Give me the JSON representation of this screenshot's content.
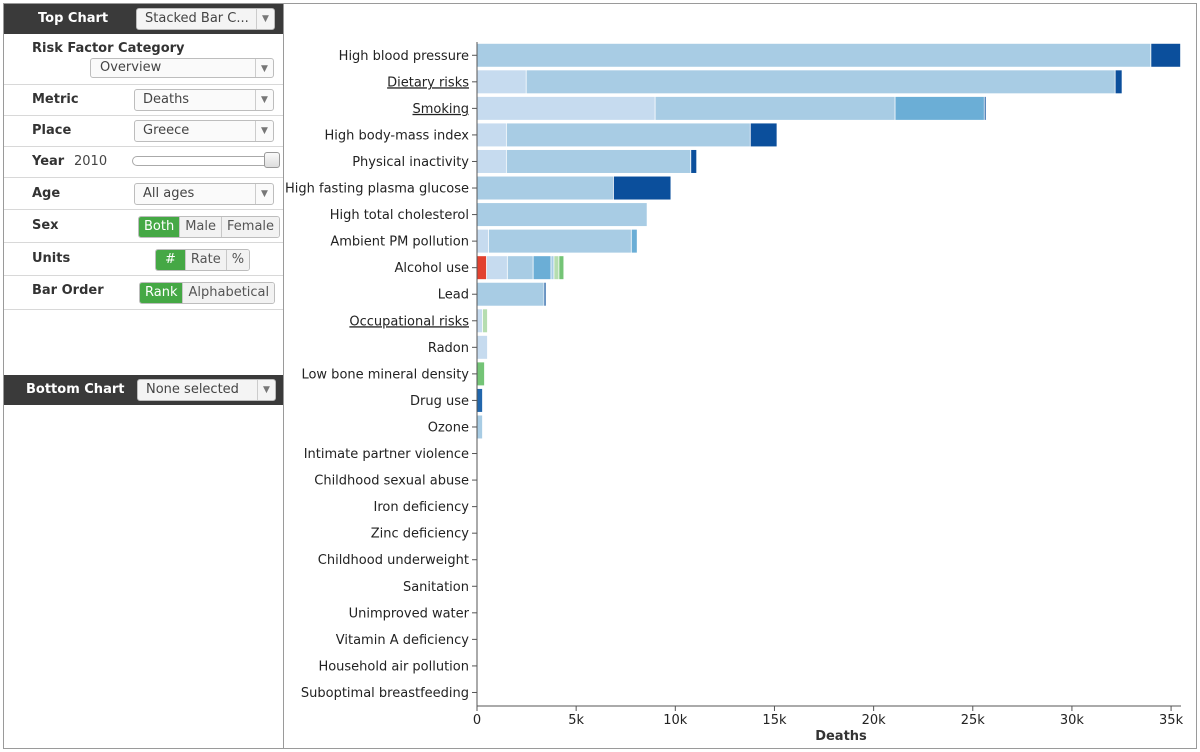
{
  "top_chart": {
    "label": "Top Chart",
    "selected": "Stacked Bar C..."
  },
  "controls": {
    "risk_factor_category": {
      "label": "Risk Factor Category",
      "value": "Overview"
    },
    "metric": {
      "label": "Metric",
      "value": "Deaths"
    },
    "place": {
      "label": "Place",
      "value": "Greece"
    },
    "year": {
      "label": "Year",
      "value": "2010",
      "slider_position": 1.0
    },
    "age": {
      "label": "Age",
      "value": "All ages"
    },
    "sex": {
      "label": "Sex",
      "options": [
        "Both",
        "Male",
        "Female"
      ],
      "selected": "Both"
    },
    "units": {
      "label": "Units",
      "options": [
        "#",
        "Rate",
        "%"
      ],
      "selected": "#"
    },
    "bar_order": {
      "label": "Bar Order",
      "options": [
        "Rank",
        "Alphabetical"
      ],
      "selected": "Rank"
    }
  },
  "bottom_chart": {
    "label": "Bottom Chart",
    "selected": "None selected"
  },
  "colors": {
    "green_active": "#45a845",
    "header_bg": "#3a3a3a",
    "bar_base": "#a8cce4",
    "bar_light": "#c6dbef",
    "bar_dark": "#0b4f9c",
    "bar_mid": "#6baed6",
    "bar_red": "#e2412f",
    "bar_green": "#74c476"
  },
  "chart_data": {
    "type": "bar",
    "orientation": "horizontal",
    "stacked": true,
    "xlabel": "Deaths",
    "xlim": [
      0,
      35500
    ],
    "x_ticks": [
      0,
      5000,
      10000,
      15000,
      20000,
      25000,
      30000,
      35000
    ],
    "x_tick_labels": [
      "0",
      "5k",
      "10k",
      "15k",
      "20k",
      "25k",
      "30k",
      "35k"
    ],
    "categories": [
      {
        "name": "High blood pressure",
        "underlined": false,
        "segments": [
          {
            "value": 34000,
            "color": "base"
          },
          {
            "value": 1500,
            "color": "dark"
          }
        ]
      },
      {
        "name": "Dietary risks",
        "underlined": true,
        "segments": [
          {
            "value": 2500,
            "color": "light"
          },
          {
            "value": 29700,
            "color": "base"
          },
          {
            "value": 350,
            "color": "dark"
          }
        ]
      },
      {
        "name": "Smoking",
        "underlined": true,
        "segments": [
          {
            "value": 9000,
            "color": "light"
          },
          {
            "value": 12100,
            "color": "base"
          },
          {
            "value": 4500,
            "color": "mid"
          },
          {
            "value": 80,
            "color": "dark"
          }
        ]
      },
      {
        "name": "High body-mass index",
        "underlined": false,
        "segments": [
          {
            "value": 1500,
            "color": "light"
          },
          {
            "value": 12300,
            "color": "base"
          },
          {
            "value": 1350,
            "color": "dark"
          }
        ]
      },
      {
        "name": "Physical inactivity",
        "underlined": false,
        "segments": [
          {
            "value": 1500,
            "color": "light"
          },
          {
            "value": 9300,
            "color": "base"
          },
          {
            "value": 300,
            "color": "dark"
          }
        ]
      },
      {
        "name": "High fasting plasma glucose",
        "underlined": false,
        "segments": [
          {
            "value": 6900,
            "color": "base"
          },
          {
            "value": 2900,
            "color": "dark"
          }
        ]
      },
      {
        "name": "High total cholesterol",
        "underlined": false,
        "segments": [
          {
            "value": 8600,
            "color": "base"
          }
        ]
      },
      {
        "name": "Ambient PM pollution",
        "underlined": false,
        "segments": [
          {
            "value": 600,
            "color": "light"
          },
          {
            "value": 7200,
            "color": "base"
          },
          {
            "value": 300,
            "color": "mid"
          }
        ]
      },
      {
        "name": "Alcohol use",
        "underlined": false,
        "segments": [
          {
            "value": 500,
            "color": "red"
          },
          {
            "value": 1050,
            "color": "light"
          },
          {
            "value": 1300,
            "color": "base"
          },
          {
            "value": 900,
            "color": "mid"
          },
          {
            "value": 150,
            "color": "base"
          },
          {
            "value": 250,
            "color": "green_light"
          },
          {
            "value": 250,
            "color": "green"
          }
        ]
      },
      {
        "name": "Lead",
        "underlined": false,
        "segments": [
          {
            "value": 3400,
            "color": "base"
          },
          {
            "value": 100,
            "color": "dark"
          }
        ]
      },
      {
        "name": "Occupational risks",
        "underlined": true,
        "segments": [
          {
            "value": 300,
            "color": "light"
          },
          {
            "value": 250,
            "color": "green_light"
          }
        ]
      },
      {
        "name": "Radon",
        "underlined": false,
        "segments": [
          {
            "value": 550,
            "color": "light"
          }
        ]
      },
      {
        "name": "Low bone mineral density",
        "underlined": false,
        "segments": [
          {
            "value": 400,
            "color": "green"
          }
        ]
      },
      {
        "name": "Drug use",
        "underlined": false,
        "segments": [
          {
            "value": 300,
            "color": "dark_mid"
          }
        ]
      },
      {
        "name": "Ozone",
        "underlined": false,
        "segments": [
          {
            "value": 300,
            "color": "base"
          }
        ]
      },
      {
        "name": "Intimate partner violence",
        "underlined": false,
        "segments": []
      },
      {
        "name": "Childhood sexual abuse",
        "underlined": false,
        "segments": []
      },
      {
        "name": "Iron deficiency",
        "underlined": false,
        "segments": []
      },
      {
        "name": "Zinc deficiency",
        "underlined": false,
        "segments": []
      },
      {
        "name": "Childhood underweight",
        "underlined": false,
        "segments": []
      },
      {
        "name": "Sanitation",
        "underlined": false,
        "segments": []
      },
      {
        "name": "Unimproved water",
        "underlined": false,
        "segments": []
      },
      {
        "name": "Vitamin A deficiency",
        "underlined": false,
        "segments": []
      },
      {
        "name": "Household air pollution",
        "underlined": false,
        "segments": []
      },
      {
        "name": "Suboptimal breastfeeding",
        "underlined": false,
        "segments": []
      }
    ]
  }
}
